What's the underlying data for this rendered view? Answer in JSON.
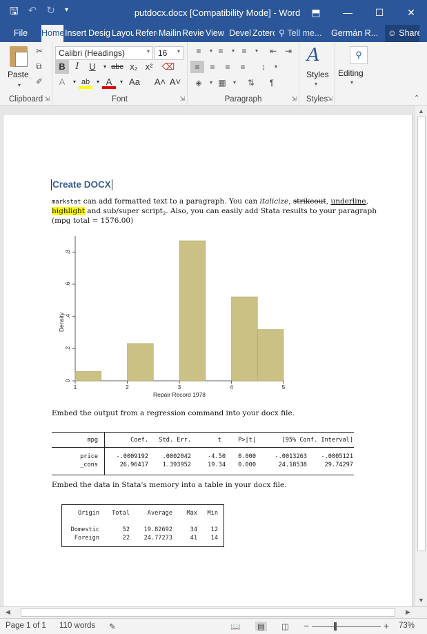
{
  "window": {
    "title": "putdocx.docx [Compatibility Mode] - Word",
    "qat": {
      "save_icon": "save-icon",
      "undo_icon": "undo-icon",
      "redo_icon": "redo-icon",
      "customize_icon": "customize-icon"
    },
    "controls": {
      "ribbon_display": "⬒",
      "minimize": "—",
      "maximize": "☐",
      "close": "✕"
    }
  },
  "tabs": {
    "file": "File",
    "home": "Home",
    "insert": "Insert",
    "design": "Design",
    "layout": "Layout",
    "references": "References",
    "mailings": "Mailings",
    "review": "Review",
    "view": "View",
    "developer": "Developer",
    "zotero": "Zotero",
    "tell_me": "Tell me...",
    "user": "Germán R...",
    "share": "Share"
  },
  "ribbon": {
    "clipboard": {
      "label": "Clipboard",
      "paste": "Paste"
    },
    "font": {
      "label": "Font",
      "font_name": "Calibri (Headings)",
      "font_size": "16",
      "bold": "B",
      "italic": "I",
      "underline": "U",
      "strike": "abc",
      "subscript": "x₂",
      "superscript": "x²",
      "text_effects": "A",
      "highlight": "ab",
      "font_color": "A",
      "change_case": "Aa",
      "grow": "A˄",
      "shrink": "A˅"
    },
    "paragraph": {
      "label": "Paragraph"
    },
    "styles": {
      "label": "Styles",
      "button": "Styles"
    },
    "editing": {
      "button": "Editing"
    }
  },
  "document": {
    "heading": "Create DOCX",
    "para1": {
      "code": "markstat",
      "t1": " can add formatted text to a paragraph. You can ",
      "italic": "italicize",
      "t2": ", ",
      "strike": "strikeout",
      "t3": ", ",
      "underline": "underline",
      "t4": ",",
      "highlight": "highlight",
      "t5": " and sub/super script",
      "sub": "2",
      "t6": ". Also, you can easily add Stata results to your paragraph",
      "t7": "(mpg total = 1576.00)"
    },
    "para2": "Embed the output from a regression command into your docx file.",
    "para3": "Embed the data in Stata's memory into a table in your docx file.",
    "regression": {
      "header": [
        "mpg",
        "Coef.",
        "Std. Err.",
        "t",
        "P>|t|",
        "[95% Conf. Interval]"
      ],
      "rows": [
        [
          "price",
          "-.0009192",
          ".0002042",
          "-4.50",
          "0.000",
          "-.0013263",
          "-.0005121"
        ],
        [
          "_cons",
          "26.96417",
          "1.393952",
          "19.34",
          "0.000",
          "24.18538",
          "29.74297"
        ]
      ]
    },
    "summary": {
      "header": [
        "Origin",
        "Total",
        "Average",
        "Max",
        "Min"
      ],
      "rows": [
        [
          "Domestic",
          "52",
          "19.82692",
          "34",
          "12"
        ],
        [
          "Foreign",
          "22",
          "24.77273",
          "41",
          "14"
        ]
      ]
    }
  },
  "chart_data": {
    "type": "bar",
    "xlabel": "Repair Record 1978",
    "ylabel": "Density",
    "xticks": [
      "1",
      "2",
      "3",
      "4",
      "5"
    ],
    "yticks": [
      "0",
      ".2",
      ".4",
      ".6",
      ".8"
    ],
    "xlim": [
      1,
      5
    ],
    "ylim": [
      0,
      0.9
    ],
    "bars": [
      {
        "x0": 1.0,
        "x1": 1.5,
        "value": 0.058
      },
      {
        "x0": 2.0,
        "x1": 2.5,
        "value": 0.232
      },
      {
        "x0": 3.0,
        "x1": 3.5,
        "value": 0.87
      },
      {
        "x0": 4.0,
        "x1": 4.5,
        "value": 0.522
      },
      {
        "x0": 4.5,
        "x1": 5.0,
        "value": 0.319
      }
    ],
    "bar_color": "#cbc185",
    "bar_edge": "#a59a5a"
  },
  "status": {
    "page": "Page 1 of 1",
    "words": "110 words",
    "zoom": "73%"
  }
}
